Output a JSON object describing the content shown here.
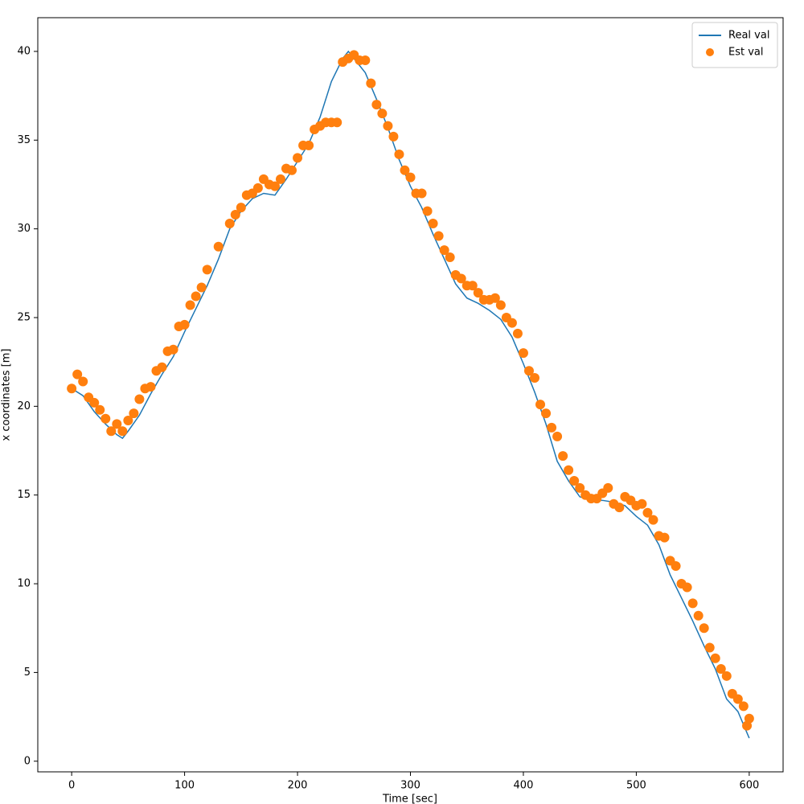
{
  "chart_data": {
    "type": "line",
    "x_label": "Time [sec]",
    "y_label": "x coordinates [m]",
    "xlim": [
      -30,
      630
    ],
    "ylim": [
      -0.6,
      41.9
    ],
    "xticks": [
      0,
      100,
      200,
      300,
      400,
      500,
      600
    ],
    "yticks": [
      0,
      5,
      10,
      15,
      20,
      25,
      30,
      35,
      40
    ],
    "legend": "upper right",
    "series": [
      {
        "name": "Real val",
        "type": "line",
        "color": "#1f77b4",
        "x": [
          0,
          10,
          20,
          30,
          40,
          45,
          50,
          60,
          70,
          80,
          90,
          100,
          110,
          120,
          130,
          140,
          150,
          160,
          170,
          180,
          190,
          200,
          210,
          220,
          230,
          240,
          245,
          250,
          260,
          270,
          280,
          290,
          300,
          310,
          320,
          330,
          340,
          350,
          360,
          370,
          380,
          390,
          400,
          410,
          420,
          430,
          440,
          450,
          460,
          470,
          480,
          490,
          500,
          510,
          520,
          530,
          540,
          550,
          560,
          570,
          580,
          590,
          600
        ],
        "values": [
          21.0,
          20.6,
          19.7,
          19.0,
          18.4,
          18.2,
          18.6,
          19.5,
          20.7,
          21.8,
          22.8,
          24.2,
          25.5,
          26.8,
          28.3,
          30.0,
          31.0,
          31.7,
          32.0,
          31.9,
          32.8,
          33.8,
          34.8,
          36.3,
          38.3,
          39.6,
          40.0,
          39.6,
          38.8,
          37.3,
          35.7,
          33.9,
          32.4,
          31.2,
          29.7,
          28.3,
          26.9,
          26.1,
          25.8,
          25.4,
          24.9,
          23.9,
          22.4,
          20.8,
          19.0,
          16.9,
          15.8,
          14.9,
          14.7,
          14.7,
          14.6,
          14.4,
          13.8,
          13.3,
          12.2,
          10.5,
          9.2,
          7.9,
          6.5,
          5.2,
          3.5,
          2.8,
          1.3
        ]
      },
      {
        "name": "Est val",
        "type": "scatter",
        "color": "#ff7f0e",
        "x": [
          0,
          5,
          10,
          15,
          20,
          25,
          30,
          35,
          40,
          45,
          50,
          55,
          60,
          65,
          70,
          75,
          80,
          85,
          90,
          95,
          100,
          105,
          110,
          115,
          120,
          130,
          140,
          145,
          150,
          155,
          160,
          165,
          170,
          175,
          180,
          185,
          190,
          195,
          200,
          205,
          210,
          215,
          220,
          225,
          230,
          235,
          240,
          245,
          250,
          255,
          260,
          265,
          270,
          275,
          280,
          285,
          290,
          295,
          300,
          305,
          310,
          315,
          320,
          325,
          330,
          335,
          340,
          345,
          350,
          355,
          360,
          365,
          370,
          375,
          380,
          385,
          390,
          395,
          400,
          405,
          410,
          415,
          420,
          425,
          430,
          435,
          440,
          445,
          450,
          455,
          460,
          465,
          470,
          475,
          480,
          485,
          490,
          495,
          500,
          505,
          510,
          515,
          520,
          525,
          530,
          535,
          540,
          545,
          550,
          555,
          560,
          565,
          570,
          575,
          580,
          585,
          590,
          595,
          598,
          600
        ],
        "values": [
          21.0,
          21.8,
          21.4,
          20.5,
          20.2,
          19.8,
          19.3,
          18.6,
          19.0,
          18.6,
          19.2,
          19.6,
          20.4,
          21.0,
          21.1,
          22.0,
          22.2,
          23.1,
          23.2,
          24.5,
          24.6,
          25.7,
          26.2,
          26.7,
          27.7,
          29.0,
          30.3,
          30.8,
          31.2,
          31.9,
          32.0,
          32.3,
          32.8,
          32.5,
          32.4,
          32.8,
          33.4,
          33.3,
          34.0,
          34.7,
          34.7,
          35.6,
          35.8,
          36.0,
          36.0,
          36.0,
          39.4,
          39.6,
          39.8,
          39.5,
          39.5,
          38.2,
          37.0,
          36.5,
          35.8,
          35.2,
          34.2,
          33.3,
          32.9,
          32.0,
          32.0,
          31.0,
          30.3,
          29.6,
          28.8,
          28.4,
          27.4,
          27.2,
          26.8,
          26.8,
          26.4,
          26.0,
          26.0,
          26.1,
          25.7,
          25.0,
          24.7,
          24.1,
          23.0,
          22.0,
          21.6,
          20.1,
          19.6,
          18.8,
          18.3,
          17.2,
          16.4,
          15.8,
          15.4,
          15.0,
          14.8,
          14.8,
          15.1,
          15.4,
          14.5,
          14.3,
          14.9,
          14.7,
          14.4,
          14.5,
          14.0,
          13.6,
          12.7,
          12.6,
          11.3,
          11.0,
          10.0,
          9.8,
          8.9,
          8.2,
          7.5,
          6.4,
          5.8,
          5.2,
          4.8,
          3.8,
          3.5,
          3.1,
          2.0,
          2.4
        ]
      }
    ]
  }
}
